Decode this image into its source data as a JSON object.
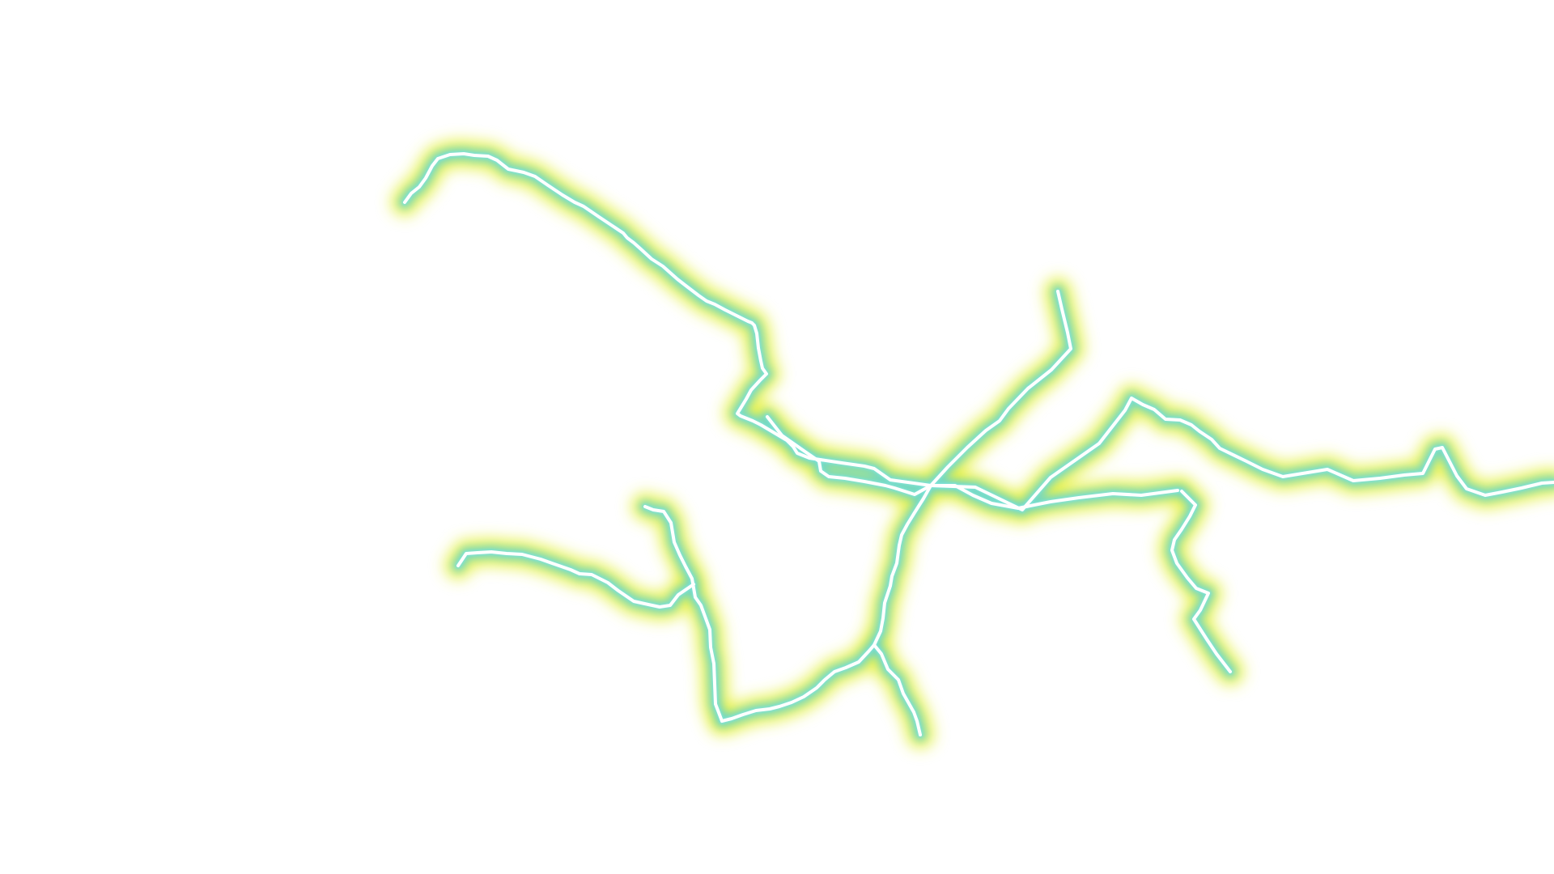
{
  "scene": {
    "background_color": "#ffffff",
    "subject": "lightning-bolt",
    "colors": {
      "outer_glow": "#e4f03c",
      "inner_glow": "#6fd6c8",
      "core": "#ffffff",
      "core_shadow": "#7fe3d8"
    }
  }
}
